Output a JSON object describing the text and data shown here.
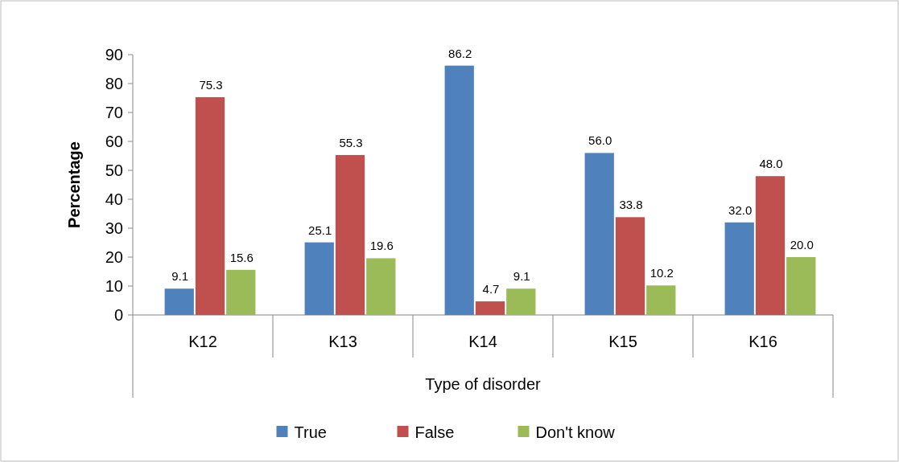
{
  "chart_data": {
    "type": "bar",
    "xlabel": "Type of disorder",
    "ylabel": "Percentage",
    "categories": [
      "K12",
      "K13",
      "K14",
      "K15",
      "K16"
    ],
    "series": [
      {
        "name": "True",
        "color": "#4f81bd",
        "values": [
          9.1,
          25.1,
          86.2,
          56.0,
          32.0
        ],
        "value_labels": [
          "9.1",
          "25.1",
          "86.2",
          "56.0",
          "32.0"
        ]
      },
      {
        "name": "False",
        "color": "#c0504d",
        "values": [
          75.3,
          55.3,
          4.7,
          33.8,
          48.0
        ],
        "value_labels": [
          "75.3",
          "55.3",
          "4.7",
          "33.8",
          "48.0"
        ]
      },
      {
        "name": "Don't know",
        "color": "#9bbb59",
        "values": [
          15.6,
          19.6,
          9.1,
          10.2,
          20.0
        ],
        "value_labels": [
          "15.6",
          "19.6",
          "9.1",
          "10.2",
          "20.0"
        ]
      }
    ],
    "ylim": [
      0,
      90
    ],
    "yticks": [
      0,
      10,
      20,
      30,
      40,
      50,
      60,
      70,
      80,
      90
    ],
    "grid": false,
    "legend": "bottom"
  }
}
